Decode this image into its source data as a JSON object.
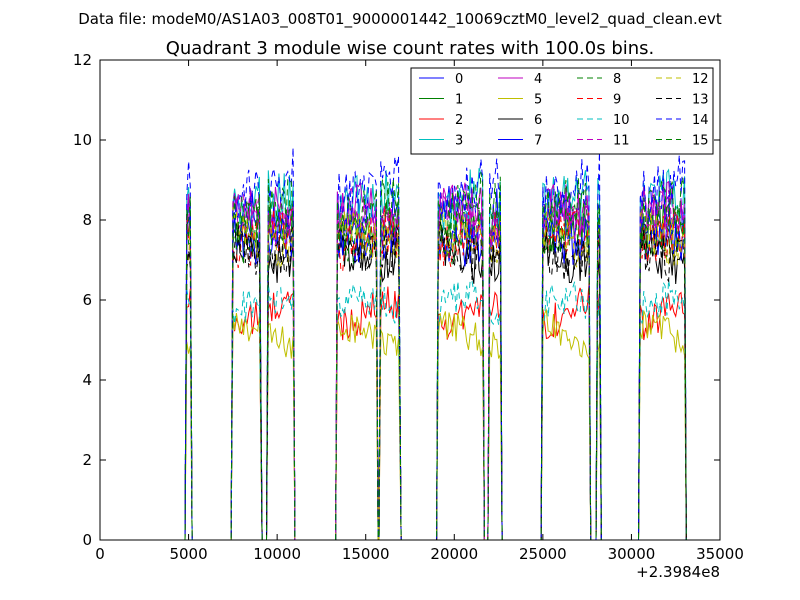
{
  "chart_data": {
    "type": "line",
    "suptitle": "Data file: modeM0/AS1A03_008T01_9000001442_10069cztM0_level2_quad_clean.evt",
    "title": "Quadrant 3 module wise count rates with 100.0s bins.",
    "xlabel": "",
    "ylabel": "",
    "x_offset_label": "+2.3984e8",
    "xlim": [
      0,
      35000
    ],
    "ylim": [
      0,
      12
    ],
    "xticks": [
      0,
      5000,
      10000,
      15000,
      20000,
      25000,
      30000,
      35000
    ],
    "yticks": [
      0,
      2,
      4,
      6,
      8,
      10,
      12
    ],
    "legend_position": "top-right",
    "bin_size_s": 100,
    "segments": [
      {
        "start": 4800,
        "end": 5200
      },
      {
        "start": 7400,
        "end": 9150
      },
      {
        "start": 9400,
        "end": 11000
      },
      {
        "start": 13300,
        "end": 15700
      },
      {
        "start": 15750,
        "end": 17000
      },
      {
        "start": 19000,
        "end": 21700
      },
      {
        "start": 21900,
        "end": 22700
      },
      {
        "start": 24900,
        "end": 27700
      },
      {
        "start": 28000,
        "end": 28300
      },
      {
        "start": 30400,
        "end": 33100
      }
    ],
    "series": [
      {
        "name": "0",
        "color": "#0000ff",
        "dash": "solid",
        "mean": 8.2
      },
      {
        "name": "1",
        "color": "#008000",
        "dash": "solid",
        "mean": 8.0
      },
      {
        "name": "2",
        "color": "#ff0000",
        "dash": "solid",
        "mean": 5.7
      },
      {
        "name": "3",
        "color": "#00bfbf",
        "dash": "solid",
        "mean": 8.4
      },
      {
        "name": "4",
        "color": "#bf00bf",
        "dash": "solid",
        "mean": 8.1
      },
      {
        "name": "5",
        "color": "#bfbf00",
        "dash": "solid",
        "mean": 5.1
      },
      {
        "name": "6",
        "color": "#000000",
        "dash": "solid",
        "mean": 7.2
      },
      {
        "name": "7",
        "color": "#0000ff",
        "dash": "solid",
        "mean": 7.6
      },
      {
        "name": "8",
        "color": "#008000",
        "dash": "dashed",
        "mean": 7.7
      },
      {
        "name": "9",
        "color": "#ff0000",
        "dash": "dashed",
        "mean": 7.5
      },
      {
        "name": "10",
        "color": "#00bfbf",
        "dash": "dashed",
        "mean": 5.8
      },
      {
        "name": "11",
        "color": "#bf00bf",
        "dash": "dashed",
        "mean": 8.0
      },
      {
        "name": "12",
        "color": "#bfbf00",
        "dash": "dashed",
        "mean": 7.6
      },
      {
        "name": "13",
        "color": "#000000",
        "dash": "dashed",
        "mean": 7.3
      },
      {
        "name": "14",
        "color": "#0000ff",
        "dash": "dashed",
        "mean": 8.9
      },
      {
        "name": "15",
        "color": "#008000",
        "dash": "dashed",
        "mean": 8.3
      }
    ]
  }
}
